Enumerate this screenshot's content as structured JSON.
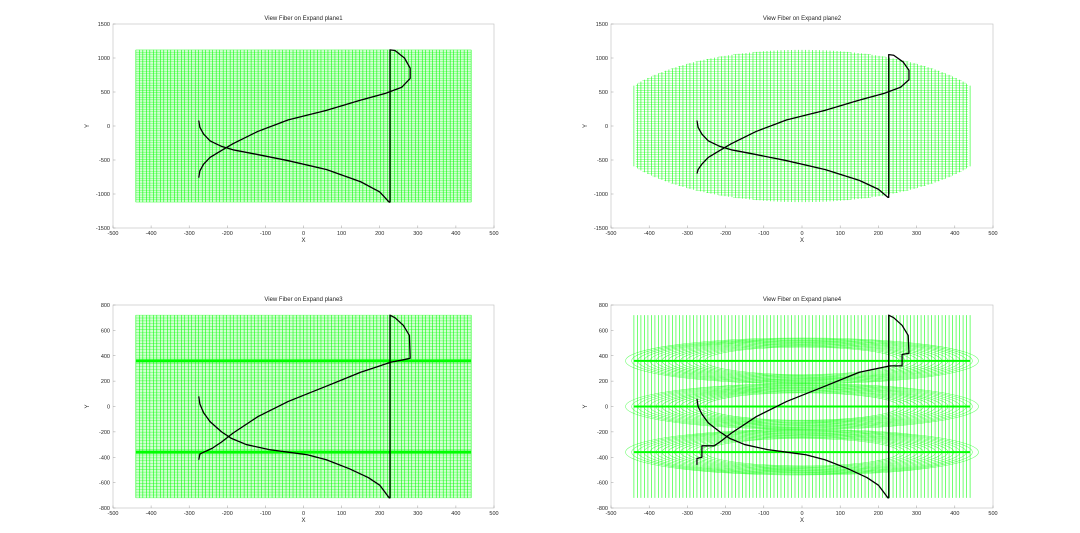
{
  "chart_data": [
    {
      "type": "line",
      "title": "View Fiber on Expand plane1",
      "xlabel": "X",
      "ylabel": "Y",
      "xlim": [
        -500,
        500
      ],
      "ylim": [
        -1500,
        1500
      ],
      "xticks": [
        -500,
        -400,
        -300,
        -200,
        -100,
        0,
        100,
        200,
        300,
        400,
        500
      ],
      "yticks": [
        -1500,
        -1000,
        -500,
        0,
        500,
        1000,
        1500
      ],
      "plane": {
        "shape": "rectangle",
        "x_range": [
          -440,
          440
        ],
        "y_range": [
          -1120,
          1120
        ],
        "color": "#00ff00"
      },
      "series": [
        {
          "color": "#000000",
          "points": [
            [
              -275,
              80
            ],
            [
              -272,
              -20
            ],
            [
              -262,
              -120
            ],
            [
              -245,
              -220
            ],
            [
              -215,
              -300
            ],
            [
              -185,
              -350
            ],
            [
              -120,
              -420
            ],
            [
              -40,
              -510
            ],
            [
              60,
              -640
            ],
            [
              150,
              -820
            ],
            [
              200,
              -970
            ],
            [
              225,
              -1120
            ],
            [
              227,
              -1120
            ],
            [
              227,
              1120
            ],
            [
              240,
              1110
            ],
            [
              265,
              1000
            ],
            [
              280,
              850
            ],
            [
              280,
              700
            ],
            [
              258,
              570
            ],
            [
              215,
              480
            ],
            [
              150,
              380
            ],
            [
              60,
              230
            ],
            [
              -40,
              90
            ],
            [
              -120,
              -80
            ],
            [
              -185,
              -260
            ],
            [
              -215,
              -360
            ],
            [
              -245,
              -460
            ],
            [
              -262,
              -560
            ],
            [
              -272,
              -660
            ],
            [
              -275,
              -760
            ]
          ]
        }
      ]
    },
    {
      "type": "line",
      "title": "View Fiber on Expand plane2",
      "xlabel": "X",
      "ylabel": "Y",
      "xlim": [
        -500,
        500
      ],
      "ylim": [
        -1500,
        1500
      ],
      "xticks": [
        -500,
        -400,
        -300,
        -200,
        -100,
        0,
        100,
        200,
        300,
        400,
        500
      ],
      "yticks": [
        -1500,
        -1000,
        -500,
        0,
        500,
        1000,
        1500
      ],
      "plane": {
        "shape": "ellipse",
        "x_range": [
          -440,
          440
        ],
        "y_range": [
          -1120,
          1120
        ],
        "cut_x": 435,
        "color": "#00ff00"
      },
      "series": [
        {
          "color": "#000000",
          "points": [
            [
              -275,
              80
            ],
            [
              -272,
              -20
            ],
            [
              -262,
              -120
            ],
            [
              -245,
              -220
            ],
            [
              -215,
              -300
            ],
            [
              -185,
              -350
            ],
            [
              -120,
              -420
            ],
            [
              -40,
              -510
            ],
            [
              60,
              -640
            ],
            [
              150,
              -800
            ],
            [
              200,
              -930
            ],
            [
              225,
              -1050
            ],
            [
              227,
              -1050
            ],
            [
              227,
              1050
            ],
            [
              240,
              1040
            ],
            [
              265,
              940
            ],
            [
              280,
              820
            ],
            [
              280,
              680
            ],
            [
              258,
              570
            ],
            [
              215,
              480
            ],
            [
              150,
              380
            ],
            [
              60,
              230
            ],
            [
              -40,
              90
            ],
            [
              -120,
              -80
            ],
            [
              -185,
              -260
            ],
            [
              -215,
              -360
            ],
            [
              -245,
              -460
            ],
            [
              -262,
              -560
            ],
            [
              -272,
              -640
            ],
            [
              -275,
              -700
            ]
          ]
        }
      ]
    },
    {
      "type": "line",
      "title": "View Fiber on Expand plane3",
      "xlabel": "X",
      "ylabel": "Y",
      "xlim": [
        -500,
        500
      ],
      "ylim": [
        -800,
        800
      ],
      "xticks": [
        -500,
        -400,
        -300,
        -200,
        -100,
        0,
        100,
        200,
        300,
        400,
        500
      ],
      "yticks": [
        -800,
        -600,
        -400,
        -200,
        0,
        200,
        400,
        600,
        800
      ],
      "plane": {
        "shape": "rectangle",
        "x_range": [
          -440,
          440
        ],
        "y_range": [
          -720,
          720
        ],
        "bands": [
          360,
          -360
        ],
        "color": "#00ff00"
      },
      "series": [
        {
          "color": "#000000",
          "points": [
            [
              -275,
              80
            ],
            [
              -272,
              20
            ],
            [
              -262,
              -50
            ],
            [
              -245,
              -120
            ],
            [
              -215,
              -200
            ],
            [
              -190,
              -250
            ],
            [
              -150,
              -300
            ],
            [
              -90,
              -340
            ],
            [
              -40,
              -360
            ],
            [
              10,
              -380
            ],
            [
              60,
              -420
            ],
            [
              120,
              -490
            ],
            [
              170,
              -560
            ],
            [
              200,
              -620
            ],
            [
              225,
              -720
            ],
            [
              227,
              -720
            ],
            [
              227,
              720
            ],
            [
              240,
              700
            ],
            [
              262,
              640
            ],
            [
              278,
              560
            ],
            [
              280,
              380
            ],
            [
              265,
              370
            ],
            [
              230,
              350
            ],
            [
              150,
              270
            ],
            [
              60,
              160
            ],
            [
              -40,
              40
            ],
            [
              -120,
              -80
            ],
            [
              -185,
              -210
            ],
            [
              -215,
              -280
            ],
            [
              -240,
              -330
            ],
            [
              -262,
              -360
            ],
            [
              -272,
              -375
            ],
            [
              -275,
              -420
            ]
          ]
        }
      ]
    },
    {
      "type": "line",
      "title": "View Fiber on Expand plane4",
      "xlabel": "X",
      "ylabel": "Y",
      "xlim": [
        -500,
        500
      ],
      "ylim": [
        -800,
        800
      ],
      "xticks": [
        -500,
        -400,
        -300,
        -200,
        -100,
        0,
        100,
        200,
        300,
        400,
        500
      ],
      "yticks": [
        -800,
        -600,
        -400,
        -200,
        0,
        200,
        400,
        600,
        800
      ],
      "plane": {
        "shape": "stacked-ellipses",
        "x_range": [
          -440,
          440
        ],
        "y_range": [
          -720,
          720
        ],
        "ellipses": [
          [
            360,
            720
          ],
          [
            0,
            720
          ],
          [
            -360,
            720
          ]
        ],
        "color": "#00ff00"
      },
      "series": [
        {
          "color": "#000000",
          "points": [
            [
              -275,
              60
            ],
            [
              -272,
              0
            ],
            [
              -262,
              -60
            ],
            [
              -245,
              -130
            ],
            [
              -215,
              -200
            ],
            [
              -190,
              -250
            ],
            [
              -150,
              -300
            ],
            [
              -90,
              -340
            ],
            [
              -40,
              -360
            ],
            [
              10,
              -380
            ],
            [
              60,
              -420
            ],
            [
              120,
              -490
            ],
            [
              170,
              -560
            ],
            [
              200,
              -620
            ],
            [
              225,
              -720
            ],
            [
              227,
              -720
            ],
            [
              227,
              720
            ],
            [
              240,
              700
            ],
            [
              262,
              640
            ],
            [
              278,
              560
            ],
            [
              280,
              420
            ],
            [
              262,
              410
            ],
            [
              262,
              320
            ],
            [
              230,
              320
            ],
            [
              150,
              270
            ],
            [
              60,
              160
            ],
            [
              -40,
              40
            ],
            [
              -120,
              -80
            ],
            [
              -185,
              -210
            ],
            [
              -215,
              -280
            ],
            [
              -230,
              -310
            ],
            [
              -262,
              -310
            ],
            [
              -262,
              -400
            ],
            [
              -275,
              -410
            ],
            [
              -275,
              -460
            ]
          ]
        }
      ]
    }
  ]
}
